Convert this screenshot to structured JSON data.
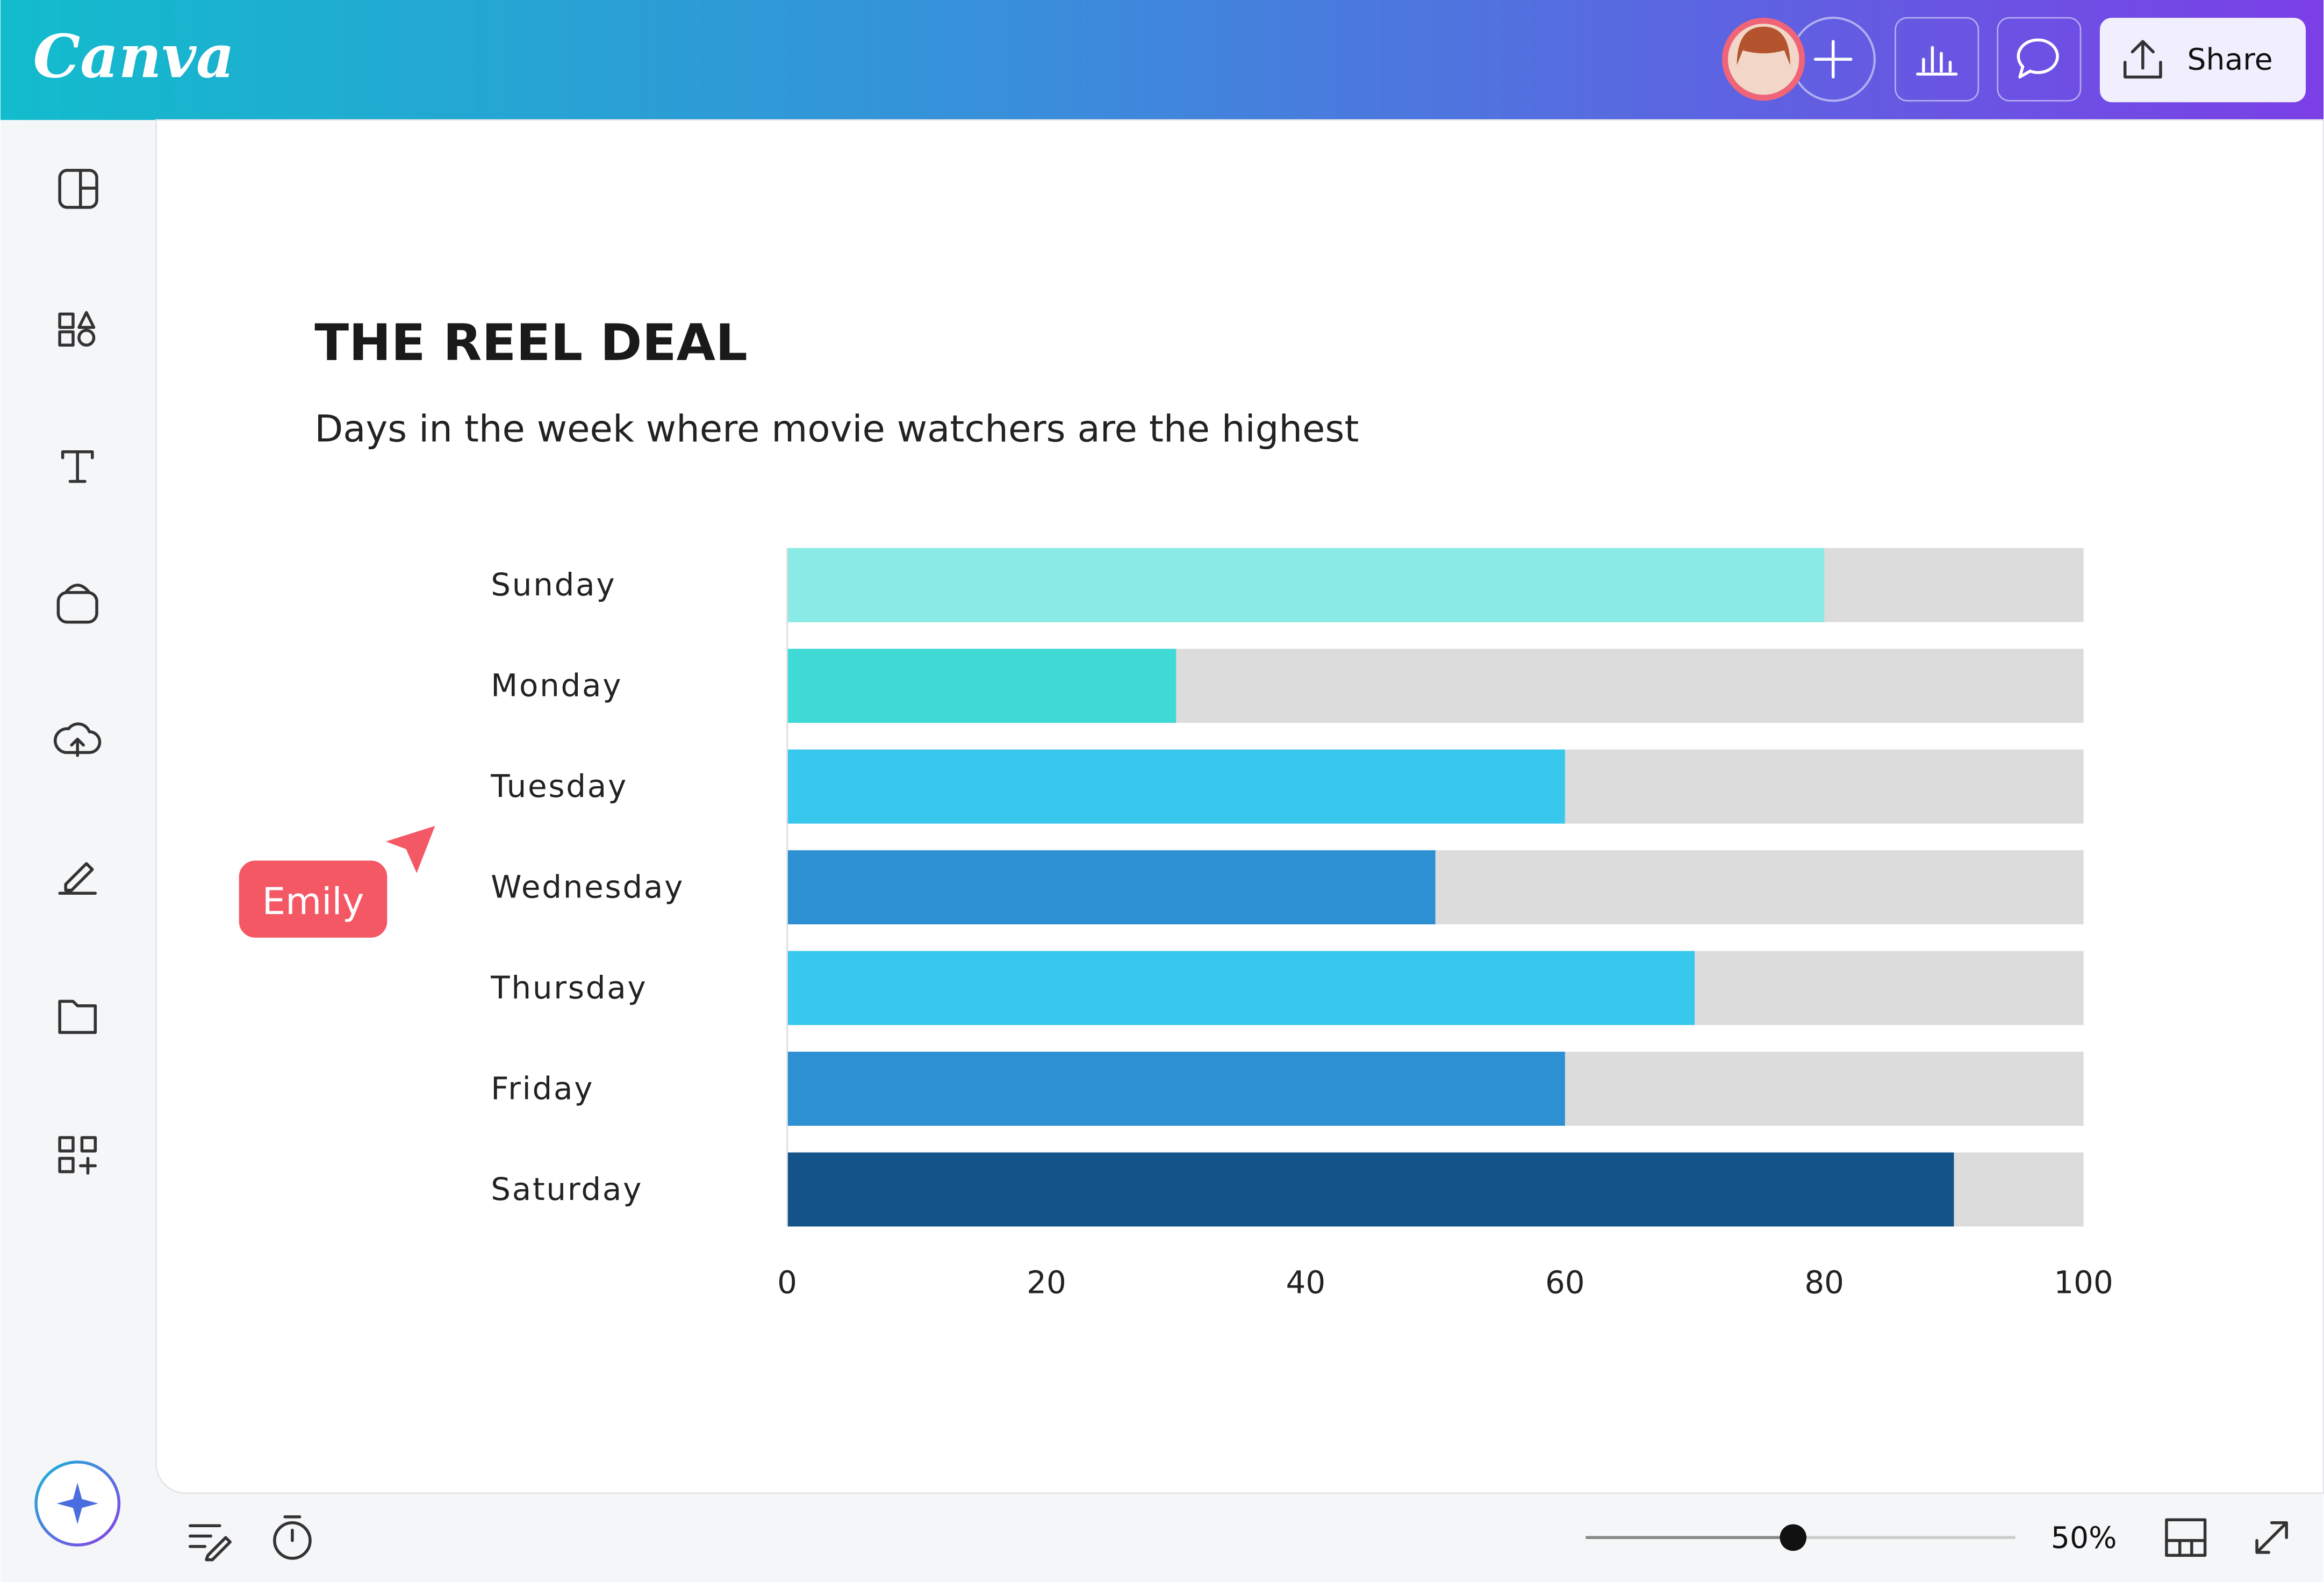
{
  "app": {
    "logo": "Canva",
    "share": "Share",
    "zoom": "50%",
    "collaborator": "Emily"
  },
  "chart_data": {
    "type": "bar",
    "orientation": "horizontal",
    "title": "THE REEL DEAL",
    "subtitle": "Days in the week where movie watchers are the highest",
    "categories": [
      "Sunday",
      "Monday",
      "Tuesday",
      "Wednesday",
      "Thursday",
      "Friday",
      "Saturday"
    ],
    "values": [
      80,
      30,
      60,
      50,
      70,
      60,
      90
    ],
    "colors": [
      "#8aeae6",
      "#3fd9d6",
      "#38c8ee",
      "#2d90d3",
      "#38c8ee",
      "#2d90d3",
      "#14528a"
    ],
    "track_color": "#dcdcdc",
    "xlim": [
      0,
      100
    ],
    "xticks": [
      0,
      20,
      40,
      60,
      80,
      100
    ]
  }
}
